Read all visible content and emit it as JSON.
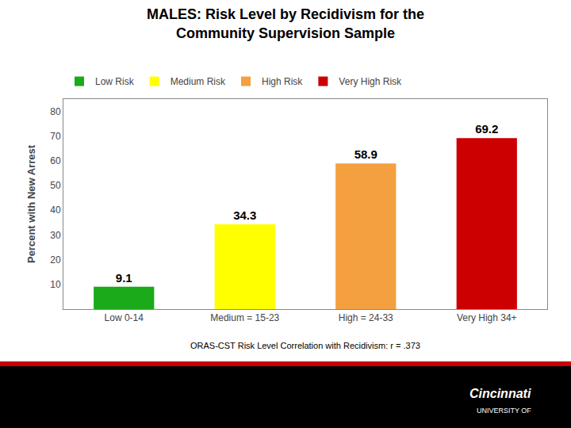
{
  "chart_data": {
    "type": "bar",
    "title": "MALES: Risk Level by Recidivism for the",
    "subtitle": "Community Supervision Sample",
    "categories": [
      "Low 0-14",
      "Medium = 15-23",
      "High = 24-33",
      "Very High 34+"
    ],
    "series": [
      {
        "name": "Low Risk",
        "color": "#1aaa1a",
        "values": [
          9.1,
          null,
          null,
          null
        ]
      },
      {
        "name": "Medium Risk",
        "color": "#ffff00",
        "values": [
          null,
          34.3,
          null,
          null
        ]
      },
      {
        "name": "High Risk",
        "color": "#f4a040",
        "values": [
          null,
          null,
          58.9,
          null
        ]
      },
      {
        "name": "Very High Risk",
        "color": "#cc0000",
        "values": [
          null,
          null,
          null,
          69.2
        ]
      }
    ],
    "ylabel": "Percent with New Arrest",
    "ylim": [
      0,
      85
    ],
    "yticks": [
      10,
      20,
      30,
      40,
      50,
      60,
      70,
      80
    ],
    "grid": false,
    "legend": "top left",
    "data_labels": true,
    "annotations": [
      "ORAS-CST Risk Level Correlation with Recidivism: r = .373",
      "UNIVERSITY OF",
      "Cincinnati"
    ]
  }
}
